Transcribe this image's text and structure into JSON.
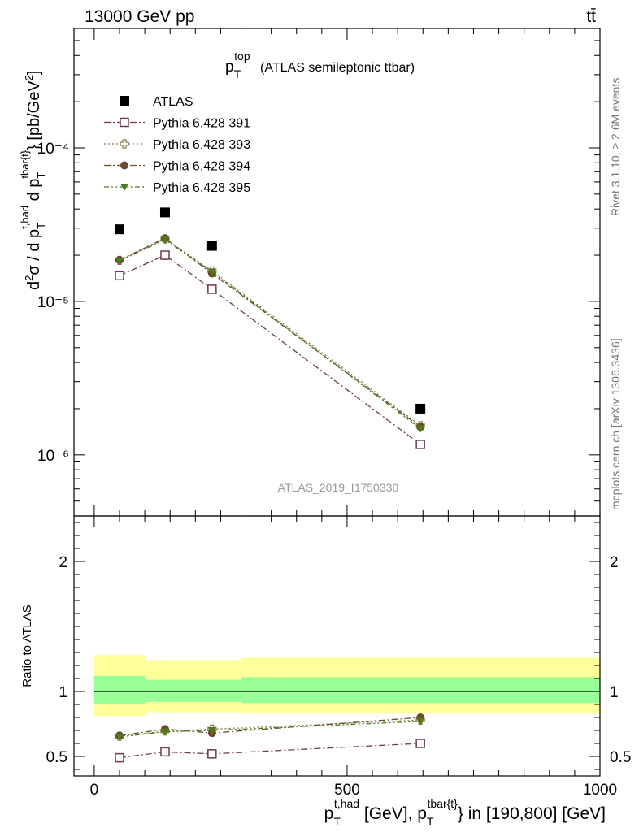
{
  "header": {
    "energy": "13000 GeV pp",
    "process": "tt̄"
  },
  "side_text": {
    "rivet": "Rivet 3.1.10, ≥ 2.6M events",
    "mcplots": "mcplots.cern.ch [arXiv:1306.3436]"
  },
  "chart_data": [
    {
      "panel": "main",
      "type": "line",
      "title": "p_T^top (ATLAS semileptonic ttbar)",
      "ylabel": "d²σ / d p_T^t,had d p_T^tbar{t} [pb/GeV²]",
      "yscale": "log",
      "ylim": [
        4e-07,
        0.0006
      ],
      "xlim": [
        -40,
        1000
      ],
      "yticks": [
        {
          "value": 1e-06,
          "label": "10⁻⁶"
        },
        {
          "value": 1e-05,
          "label": "10⁻⁵"
        },
        {
          "value": 0.0001,
          "label": "10⁻⁴"
        }
      ],
      "watermark": "ATLAS_2019_I1750330",
      "series": [
        {
          "name": "ATLAS",
          "style": "data",
          "color": "#000000",
          "marker": "filled-square",
          "x": [
            50,
            140,
            233,
            645
          ],
          "values": [
            2.95e-05,
            3.8e-05,
            2.3e-05,
            2e-06
          ]
        },
        {
          "name": "Pythia 6.428 391",
          "style": "dash-dot",
          "color": "#6b3a50",
          "marker": "open-square",
          "x": [
            50,
            140,
            233,
            645
          ],
          "values": [
            1.47e-05,
            2e-05,
            1.2e-05,
            1.17e-06
          ]
        },
        {
          "name": "Pythia 6.428 393",
          "style": "dotted",
          "color": "#8a7a46",
          "marker": "open-cross",
          "x": [
            50,
            140,
            233,
            645
          ],
          "values": [
            1.85e-05,
            2.55e-05,
            1.58e-05,
            1.55e-06
          ]
        },
        {
          "name": "Pythia 6.428 394",
          "style": "dash-dot",
          "color": "#6b4a2a",
          "marker": "filled-circle",
          "x": [
            50,
            140,
            233,
            645
          ],
          "values": [
            1.86e-05,
            2.58e-05,
            1.52e-05,
            1.52e-06
          ]
        },
        {
          "name": "Pythia 6.428 395",
          "style": "dash-dot-dot",
          "color": "#4f7a1e",
          "marker": "filled-triangle-down",
          "x": [
            50,
            140,
            233,
            645
          ],
          "values": [
            1.84e-05,
            2.52e-05,
            1.56e-05,
            1.48e-06
          ]
        }
      ]
    },
    {
      "panel": "ratio",
      "type": "line",
      "ylabel": "Ratio to ATLAS",
      "xlabel": "p_T^t,had [GeV], p_T^tbar{t} in [190,800] [GeV]",
      "xlim": [
        -40,
        1000
      ],
      "ylim": [
        0.35,
        2.35
      ],
      "xticks": [
        0,
        500,
        1000
      ],
      "yticks": [
        {
          "value": 0.5,
          "label": "0.5"
        },
        {
          "value": 1,
          "label": "1"
        },
        {
          "value": 2,
          "label": "2"
        }
      ],
      "bands": [
        {
          "x0": 0,
          "x1": 100,
          "yellow": [
            0.81,
            1.28
          ],
          "green": [
            0.9,
            1.12
          ]
        },
        {
          "x0": 100,
          "x1": 290,
          "yellow": [
            0.84,
            1.24
          ],
          "green": [
            0.92,
            1.09
          ]
        },
        {
          "x0": 290,
          "x1": 1000,
          "yellow": [
            0.83,
            1.26
          ],
          "green": [
            0.91,
            1.11
          ]
        }
      ],
      "colors": {
        "yellow": "#ffff99",
        "green": "#99ff99"
      },
      "series": [
        {
          "name": "Pythia 6.428 391",
          "style": "dash-dot",
          "color": "#6b3a50",
          "marker": "open-square",
          "x": [
            50,
            140,
            233,
            645
          ],
          "values": [
            0.49,
            0.535,
            0.52,
            0.6
          ]
        },
        {
          "name": "Pythia 6.428 393",
          "style": "dotted",
          "color": "#8a7a46",
          "marker": "open-cross",
          "x": [
            50,
            140,
            233,
            645
          ],
          "values": [
            0.655,
            0.695,
            0.71,
            0.78
          ]
        },
        {
          "name": "Pythia 6.428 394",
          "style": "dash-dot",
          "color": "#6b4a2a",
          "marker": "filled-circle",
          "x": [
            50,
            140,
            233,
            645
          ],
          "values": [
            0.66,
            0.71,
            0.68,
            0.8
          ]
        },
        {
          "name": "Pythia 6.428 395",
          "style": "dash-dot-dot",
          "color": "#4f7a1e",
          "marker": "filled-triangle-down",
          "x": [
            50,
            140,
            233,
            645
          ],
          "values": [
            0.65,
            0.69,
            0.7,
            0.77
          ]
        }
      ]
    }
  ]
}
